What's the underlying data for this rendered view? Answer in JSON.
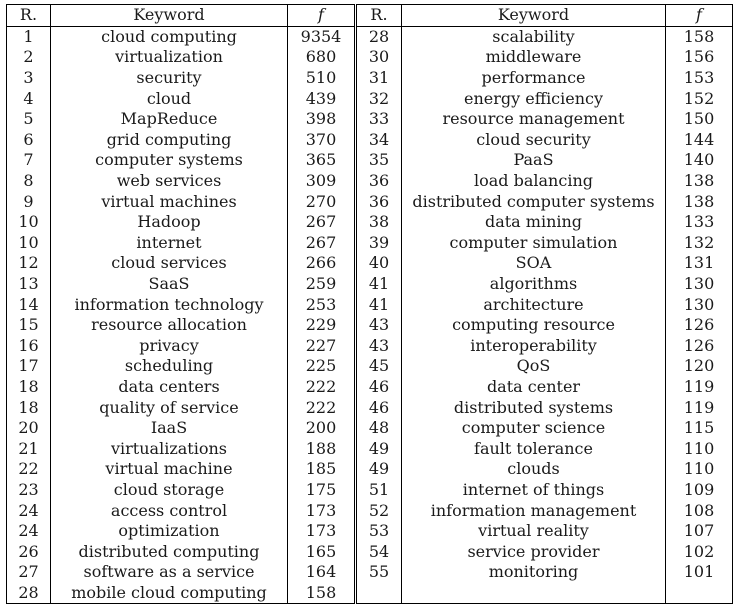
{
  "headers": {
    "rank": "R.",
    "keyword": "Keyword",
    "freq": "f"
  },
  "left": [
    {
      "r": "1",
      "k": "cloud computing",
      "f": "9354"
    },
    {
      "r": "2",
      "k": "virtualization",
      "f": "680"
    },
    {
      "r": "3",
      "k": "security",
      "f": "510"
    },
    {
      "r": "4",
      "k": "cloud",
      "f": "439"
    },
    {
      "r": "5",
      "k": "MapReduce",
      "f": "398"
    },
    {
      "r": "6",
      "k": "grid computing",
      "f": "370"
    },
    {
      "r": "7",
      "k": "computer systems",
      "f": "365"
    },
    {
      "r": "8",
      "k": "web services",
      "f": "309"
    },
    {
      "r": "9",
      "k": "virtual machines",
      "f": "270"
    },
    {
      "r": "10",
      "k": "Hadoop",
      "f": "267"
    },
    {
      "r": "10",
      "k": "internet",
      "f": "267"
    },
    {
      "r": "12",
      "k": "cloud services",
      "f": "266"
    },
    {
      "r": "13",
      "k": "SaaS",
      "f": "259"
    },
    {
      "r": "14",
      "k": "information technology",
      "f": "253"
    },
    {
      "r": "15",
      "k": "resource allocation",
      "f": "229"
    },
    {
      "r": "16",
      "k": "privacy",
      "f": "227"
    },
    {
      "r": "17",
      "k": "scheduling",
      "f": "225"
    },
    {
      "r": "18",
      "k": "data centers",
      "f": "222"
    },
    {
      "r": "18",
      "k": "quality of service",
      "f": "222"
    },
    {
      "r": "20",
      "k": "IaaS",
      "f": "200"
    },
    {
      "r": "21",
      "k": "virtualizations",
      "f": "188"
    },
    {
      "r": "22",
      "k": "virtual machine",
      "f": "185"
    },
    {
      "r": "23",
      "k": "cloud storage",
      "f": "175"
    },
    {
      "r": "24",
      "k": "access control",
      "f": "173"
    },
    {
      "r": "24",
      "k": "optimization",
      "f": "173"
    },
    {
      "r": "26",
      "k": "distributed computing",
      "f": "165"
    },
    {
      "r": "27",
      "k": "software as a service",
      "f": "164"
    },
    {
      "r": "28",
      "k": "mobile cloud computing",
      "f": "158"
    }
  ],
  "right": [
    {
      "r": "28",
      "k": "scalability",
      "f": "158"
    },
    {
      "r": "30",
      "k": "middleware",
      "f": "156"
    },
    {
      "r": "31",
      "k": "performance",
      "f": "153"
    },
    {
      "r": "32",
      "k": "energy efficiency",
      "f": "152"
    },
    {
      "r": "33",
      "k": "resource management",
      "f": "150"
    },
    {
      "r": "34",
      "k": "cloud security",
      "f": "144"
    },
    {
      "r": "35",
      "k": "PaaS",
      "f": "140"
    },
    {
      "r": "36",
      "k": "load balancing",
      "f": "138"
    },
    {
      "r": "36",
      "k": "distributed computer systems",
      "f": "138"
    },
    {
      "r": "38",
      "k": "data mining",
      "f": "133"
    },
    {
      "r": "39",
      "k": "computer simulation",
      "f": "132"
    },
    {
      "r": "40",
      "k": "SOA",
      "f": "131"
    },
    {
      "r": "41",
      "k": "algorithms",
      "f": "130"
    },
    {
      "r": "41",
      "k": "architecture",
      "f": "130"
    },
    {
      "r": "43",
      "k": "computing resource",
      "f": "126"
    },
    {
      "r": "43",
      "k": "interoperability",
      "f": "126"
    },
    {
      "r": "45",
      "k": "QoS",
      "f": "120"
    },
    {
      "r": "46",
      "k": "data center",
      "f": "119"
    },
    {
      "r": "46",
      "k": "distributed systems",
      "f": "119"
    },
    {
      "r": "48",
      "k": "computer science",
      "f": "115"
    },
    {
      "r": "49",
      "k": "fault tolerance",
      "f": "110"
    },
    {
      "r": "49",
      "k": "clouds",
      "f": "110"
    },
    {
      "r": "51",
      "k": "internet of things",
      "f": "109"
    },
    {
      "r": "52",
      "k": "information management",
      "f": "108"
    },
    {
      "r": "53",
      "k": "virtual reality",
      "f": "107"
    },
    {
      "r": "54",
      "k": "service provider",
      "f": "102"
    },
    {
      "r": "55",
      "k": "monitoring",
      "f": "101"
    }
  ]
}
